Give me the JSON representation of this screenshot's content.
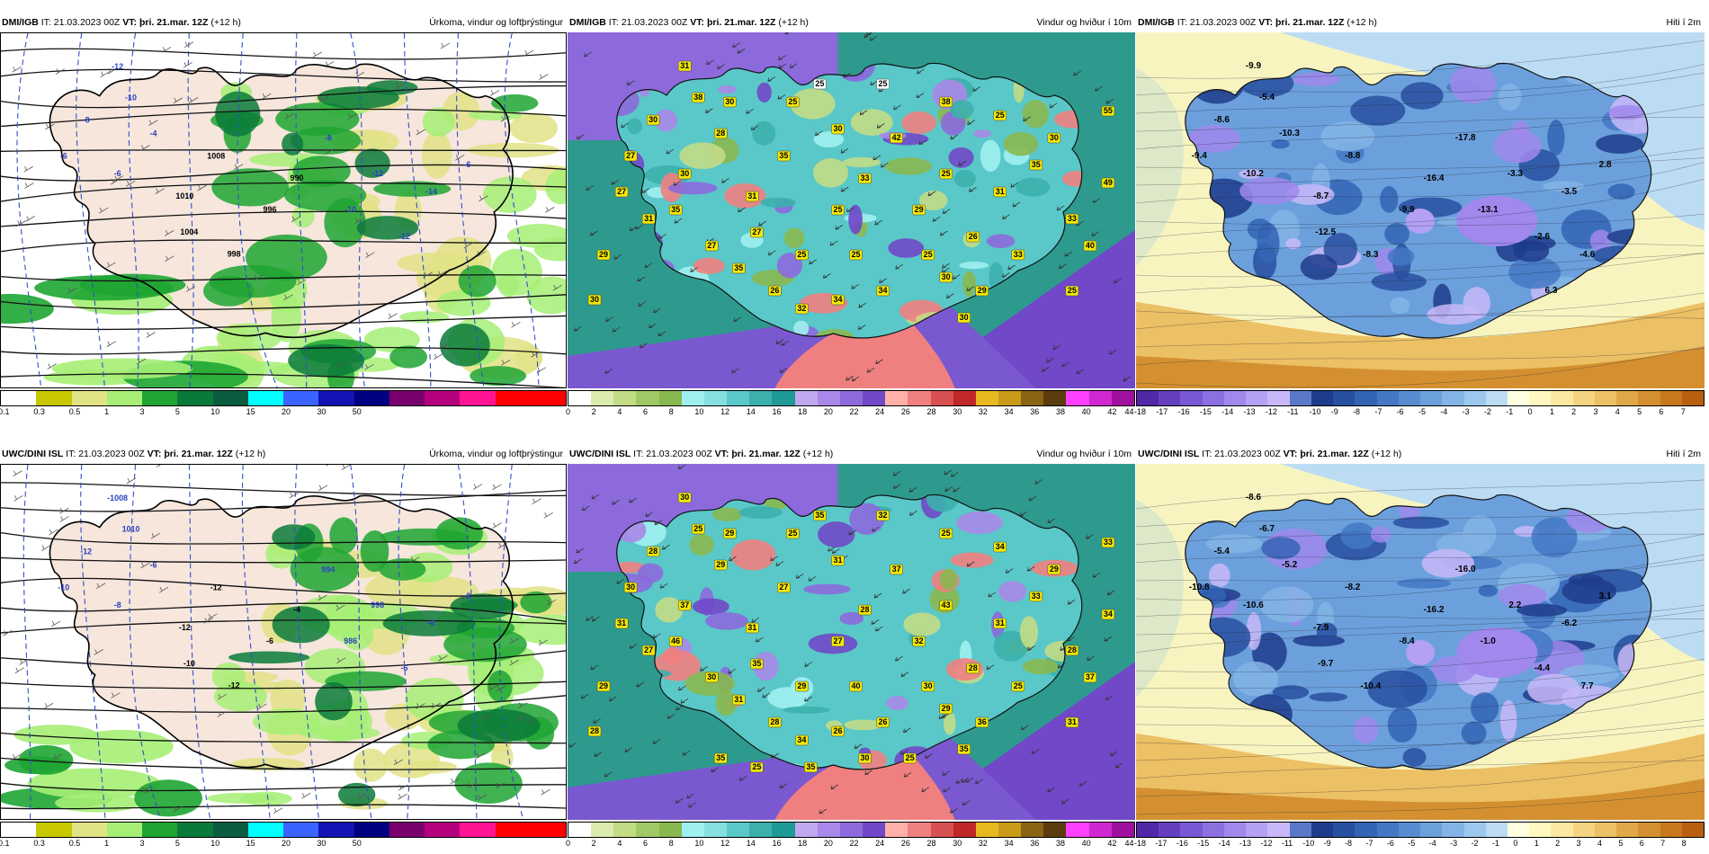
{
  "colors": {
    "precip": [
      "#ffffff",
      "#c8c800",
      "#e2e286",
      "#a6ee76",
      "#1ea532",
      "#0a7a3a",
      "#0b5d3f",
      "#00ffff",
      "#3b63ff",
      "#1414b4",
      "#000080",
      "#7a006e",
      "#b4007c",
      "#ff1493",
      "#ff0000",
      "#ff0000"
    ],
    "wind": [
      "#ffffff",
      "#dcebb0",
      "#c2dc86",
      "#a0c864",
      "#88b850",
      "#a0f0f0",
      "#86e0e0",
      "#5ac8c8",
      "#3cb0ac",
      "#1e9a96",
      "#c0a8f0",
      "#a888e8",
      "#8c6adc",
      "#7048c8",
      "#ffb0a8",
      "#f08080",
      "#d85050",
      "#c02828",
      "#e8b820",
      "#c89a18",
      "#8a6414",
      "#5a3c0e",
      "#ff40ff",
      "#d028d0",
      "#a010a0"
    ],
    "temp": [
      "#5028a8",
      "#6440c0",
      "#7858d4",
      "#8c70e0",
      "#a088ec",
      "#b4a0f4",
      "#c8b8f8",
      "#5a78c8",
      "#1e3c8c",
      "#2850a0",
      "#3464b4",
      "#4478c4",
      "#588cd0",
      "#6ca0dc",
      "#84b4e6",
      "#9cc8ee",
      "#bcdcf4",
      "#ffffe0",
      "#fff8c0",
      "#fbe8a0",
      "#f4d480",
      "#ecc064",
      "#e0a848",
      "#d49030",
      "#c8781c",
      "#b86010"
    ]
  },
  "rows": [
    {
      "model": "DMI/IGB",
      "it_label": "IT:",
      "it_value": "21.03.2023 00Z",
      "vt_label": "VT:",
      "vt_value": "þri. 21.mar. 12Z",
      "lead": "(+12 h)",
      "panels": [
        {
          "title": "Úrkoma, vindur og loftþrýstingur",
          "ticks": [
            "0.1",
            "0.3",
            "0.5",
            "1",
            "3",
            "5",
            "10",
            "15",
            "20",
            "30",
            "50"
          ],
          "map_labels": [
            "-12",
            "-10",
            "-8",
            "-6",
            "-6",
            "-4",
            "1010",
            "1008",
            "1004",
            "998",
            "996",
            "990",
            "-8",
            "-10",
            "-12",
            "-12",
            "-14",
            "-6"
          ]
        },
        {
          "title": "Vindur og hviður í 10m",
          "ticks": [
            "0",
            "2",
            "4",
            "6",
            "8",
            "10",
            "12",
            "14",
            "16",
            "18",
            "20",
            "22",
            "24",
            "26",
            "28",
            "30",
            "32",
            "34",
            "36",
            "38",
            "40",
            "42",
            "44"
          ],
          "map_labels": [
            "31",
            "38",
            "30",
            "27",
            "30",
            "28",
            "31",
            "35",
            "27",
            "25",
            "25",
            "33",
            "42",
            "29",
            "25",
            "26",
            "31",
            "35",
            "33",
            "29",
            "30",
            "34",
            "34",
            "32",
            "26",
            "35",
            "27",
            "25",
            "38",
            "25",
            "30",
            "33",
            "31",
            "27",
            "29",
            "30",
            "25",
            "40",
            "49",
            "55",
            "25",
            "30",
            "25",
            "30",
            "35",
            "25",
            "25",
            "30"
          ]
        },
        {
          "title": "Hiti í 2m",
          "ticks": [
            "-18",
            "-17",
            "-16",
            "-15",
            "-14",
            "-13",
            "-12",
            "-11",
            "-10",
            "-9",
            "-8",
            "-7",
            "-6",
            "-5",
            "-4",
            "-3",
            "-2",
            "-1",
            "0",
            "1",
            "2",
            "3",
            "4",
            "5",
            "6",
            "7"
          ],
          "map_labels": [
            "-9.9",
            "-5.4",
            "-8.6",
            "-9.4",
            "-10.2",
            "-10.3",
            "-8.7",
            "-8.8",
            "-12.5",
            "-8.3",
            "-9.9",
            "-16.4",
            "-17.8",
            "-13.1",
            "-3.3",
            "-2.6",
            "-3.5",
            "2.8",
            "-4.6",
            "6.3"
          ]
        }
      ]
    },
    {
      "model": "UWC/DINI ISL",
      "it_label": "IT:",
      "it_value": "21.03.2023 00Z",
      "vt_label": "VT:",
      "vt_value": "þri. 21.mar. 12Z",
      "lead": "(+12 h)",
      "panels": [
        {
          "title": "Úrkoma, vindur og loftþrýstingur",
          "ticks": [
            "0.1",
            "0.3",
            "0.5",
            "1",
            "3",
            "5",
            "10",
            "15",
            "20",
            "30",
            "50"
          ],
          "map_labels": [
            "-1008",
            "1010",
            "-12",
            "-10",
            "-8",
            "-6",
            "-12",
            "-12",
            "-10",
            "-12",
            "-6",
            "-4",
            "994",
            "986",
            "998",
            "-6",
            "-6",
            "-8"
          ]
        },
        {
          "title": "Vindur og hviður í 10m",
          "ticks": [
            "0",
            "2",
            "4",
            "6",
            "8",
            "10",
            "12",
            "14",
            "16",
            "18",
            "20",
            "22",
            "24",
            "26",
            "28",
            "30",
            "32",
            "34",
            "36",
            "38",
            "40",
            "42",
            "44"
          ],
          "map_labels": [
            "30",
            "25",
            "28",
            "30",
            "37",
            "29",
            "31",
            "27",
            "35",
            "29",
            "27",
            "28",
            "37",
            "32",
            "43",
            "28",
            "31",
            "33",
            "25",
            "36",
            "29",
            "26",
            "26",
            "34",
            "28",
            "31",
            "30",
            "32",
            "25",
            "34",
            "29",
            "28",
            "27",
            "31",
            "29",
            "28",
            "31",
            "37",
            "34",
            "33",
            "25",
            "31",
            "35",
            "29",
            "46",
            "40",
            "30",
            "35",
            "25",
            "30",
            "35",
            "25",
            "35"
          ]
        },
        {
          "title": "Hiti í 2m",
          "ticks": [
            "-18",
            "-17",
            "-16",
            "-15",
            "-14",
            "-13",
            "-12",
            "-11",
            "-10",
            "-9",
            "-8",
            "-7",
            "-6",
            "-5",
            "-4",
            "-3",
            "-2",
            "-1",
            "0",
            "1",
            "2",
            "3",
            "4",
            "5",
            "6",
            "7",
            "8"
          ],
          "map_labels": [
            "-8.6",
            "-6.7",
            "-5.4",
            "-10.8",
            "-10.6",
            "-5.2",
            "-7.9",
            "-8.2",
            "-9.7",
            "-10.4",
            "-8.4",
            "-16.2",
            "-16.0",
            "-1.0",
            "2.2",
            "-4.4",
            "-6.2",
            "3.1",
            "7.7"
          ]
        }
      ]
    }
  ]
}
